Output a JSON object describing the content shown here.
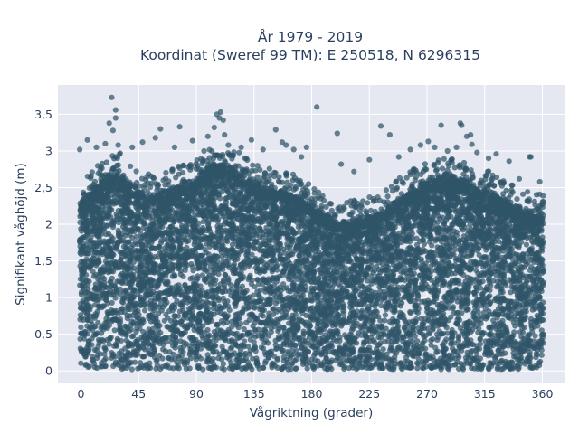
{
  "chart_data": {
    "type": "scatter",
    "title_lines": [
      "År 1979 - 2019",
      "Koordinat (Sweref 99 TM): E 250518, N 6296315"
    ],
    "xlabel": "Vågriktning (grader)",
    "ylabel": "Signifikant våghöjd (m)",
    "xlim": [
      -18,
      378
    ],
    "ylim": [
      -0.17,
      3.9
    ],
    "xticks": [
      0,
      45,
      90,
      135,
      180,
      225,
      270,
      315,
      360
    ],
    "xtick_labels": [
      "0",
      "45",
      "90",
      "135",
      "180",
      "225",
      "270",
      "315",
      "360"
    ],
    "yticks": [
      0,
      0.5,
      1,
      1.5,
      2,
      2.5,
      3,
      3.5
    ],
    "ytick_labels": [
      "0",
      "0,5",
      "1",
      "1,5",
      "2",
      "2,5",
      "3",
      "3,5"
    ],
    "grid": true,
    "legend": "none",
    "colors": {
      "marker": "#2f5468",
      "plot_bg": "#e5e8f0",
      "grid": "#ffffff",
      "text": "#2a3f5f"
    },
    "envelope": {
      "x": [
        0,
        10,
        20,
        30,
        40,
        50,
        60,
        70,
        80,
        90,
        100,
        110,
        120,
        130,
        140,
        150,
        160,
        170,
        180,
        190,
        200,
        210,
        220,
        230,
        240,
        250,
        260,
        270,
        280,
        290,
        300,
        310,
        320,
        330,
        340,
        350,
        360
      ],
      "y": [
        2.25,
        2.45,
        2.6,
        2.7,
        2.45,
        2.4,
        2.35,
        2.45,
        2.5,
        2.6,
        2.75,
        2.8,
        2.7,
        2.6,
        2.5,
        2.45,
        2.4,
        2.35,
        2.2,
        2.1,
        2.0,
        2.0,
        2.05,
        2.1,
        2.2,
        2.35,
        2.45,
        2.55,
        2.6,
        2.6,
        2.55,
        2.45,
        2.4,
        2.3,
        2.2,
        2.15,
        2.1
      ]
    },
    "outliers": [
      {
        "x": 24,
        "y": 3.73
      },
      {
        "x": 27,
        "y": 3.56
      },
      {
        "x": 27,
        "y": 3.45
      },
      {
        "x": 22,
        "y": 3.38
      },
      {
        "x": 25,
        "y": 3.28
      },
      {
        "x": 5,
        "y": 3.15
      },
      {
        "x": -1,
        "y": 3.02
      },
      {
        "x": 12,
        "y": 3.05
      },
      {
        "x": 19,
        "y": 3.1
      },
      {
        "x": 29,
        "y": 3.08
      },
      {
        "x": 40,
        "y": 3.05
      },
      {
        "x": 48,
        "y": 3.12
      },
      {
        "x": 58,
        "y": 3.18
      },
      {
        "x": 62,
        "y": 3.3
      },
      {
        "x": 73,
        "y": 3.05
      },
      {
        "x": 77,
        "y": 3.33
      },
      {
        "x": 87,
        "y": 3.14
      },
      {
        "x": 96,
        "y": 3.0
      },
      {
        "x": 99,
        "y": 3.2
      },
      {
        "x": 104,
        "y": 3.32
      },
      {
        "x": 106,
        "y": 3.5
      },
      {
        "x": 108,
        "y": 3.45
      },
      {
        "x": 109,
        "y": 3.53
      },
      {
        "x": 111,
        "y": 3.42
      },
      {
        "x": 112,
        "y": 3.22
      },
      {
        "x": 115,
        "y": 3.08
      },
      {
        "x": 125,
        "y": 3.05
      },
      {
        "x": 129,
        "y": 2.9
      },
      {
        "x": 133,
        "y": 3.15
      },
      {
        "x": 142,
        "y": 3.02
      },
      {
        "x": 152,
        "y": 3.29
      },
      {
        "x": 157,
        "y": 3.12
      },
      {
        "x": 160,
        "y": 3.08
      },
      {
        "x": 166,
        "y": 3.02
      },
      {
        "x": 172,
        "y": 2.92
      },
      {
        "x": 176,
        "y": 3.05
      },
      {
        "x": 184,
        "y": 3.6
      },
      {
        "x": 200,
        "y": 3.24
      },
      {
        "x": 203,
        "y": 2.82
      },
      {
        "x": 213,
        "y": 2.72
      },
      {
        "x": 225,
        "y": 2.88
      },
      {
        "x": 234,
        "y": 3.34
      },
      {
        "x": 241,
        "y": 3.22
      },
      {
        "x": 248,
        "y": 2.92
      },
      {
        "x": 257,
        "y": 3.02
      },
      {
        "x": 265,
        "y": 3.08
      },
      {
        "x": 271,
        "y": 3.13
      },
      {
        "x": 276,
        "y": 3.05
      },
      {
        "x": 281,
        "y": 3.35
      },
      {
        "x": 286,
        "y": 3.0
      },
      {
        "x": 293,
        "y": 3.05
      },
      {
        "x": 296,
        "y": 3.38
      },
      {
        "x": 297,
        "y": 3.35
      },
      {
        "x": 301,
        "y": 3.2
      },
      {
        "x": 304,
        "y": 3.22
      },
      {
        "x": 305,
        "y": 3.09
      },
      {
        "x": 309,
        "y": 2.98
      },
      {
        "x": 318,
        "y": 2.9
      },
      {
        "x": 324,
        "y": 2.96
      },
      {
        "x": 334,
        "y": 2.86
      },
      {
        "x": 342,
        "y": 2.62
      },
      {
        "x": 350,
        "y": 2.92
      },
      {
        "x": 351,
        "y": 2.92
      },
      {
        "x": 358,
        "y": 2.58
      }
    ]
  }
}
